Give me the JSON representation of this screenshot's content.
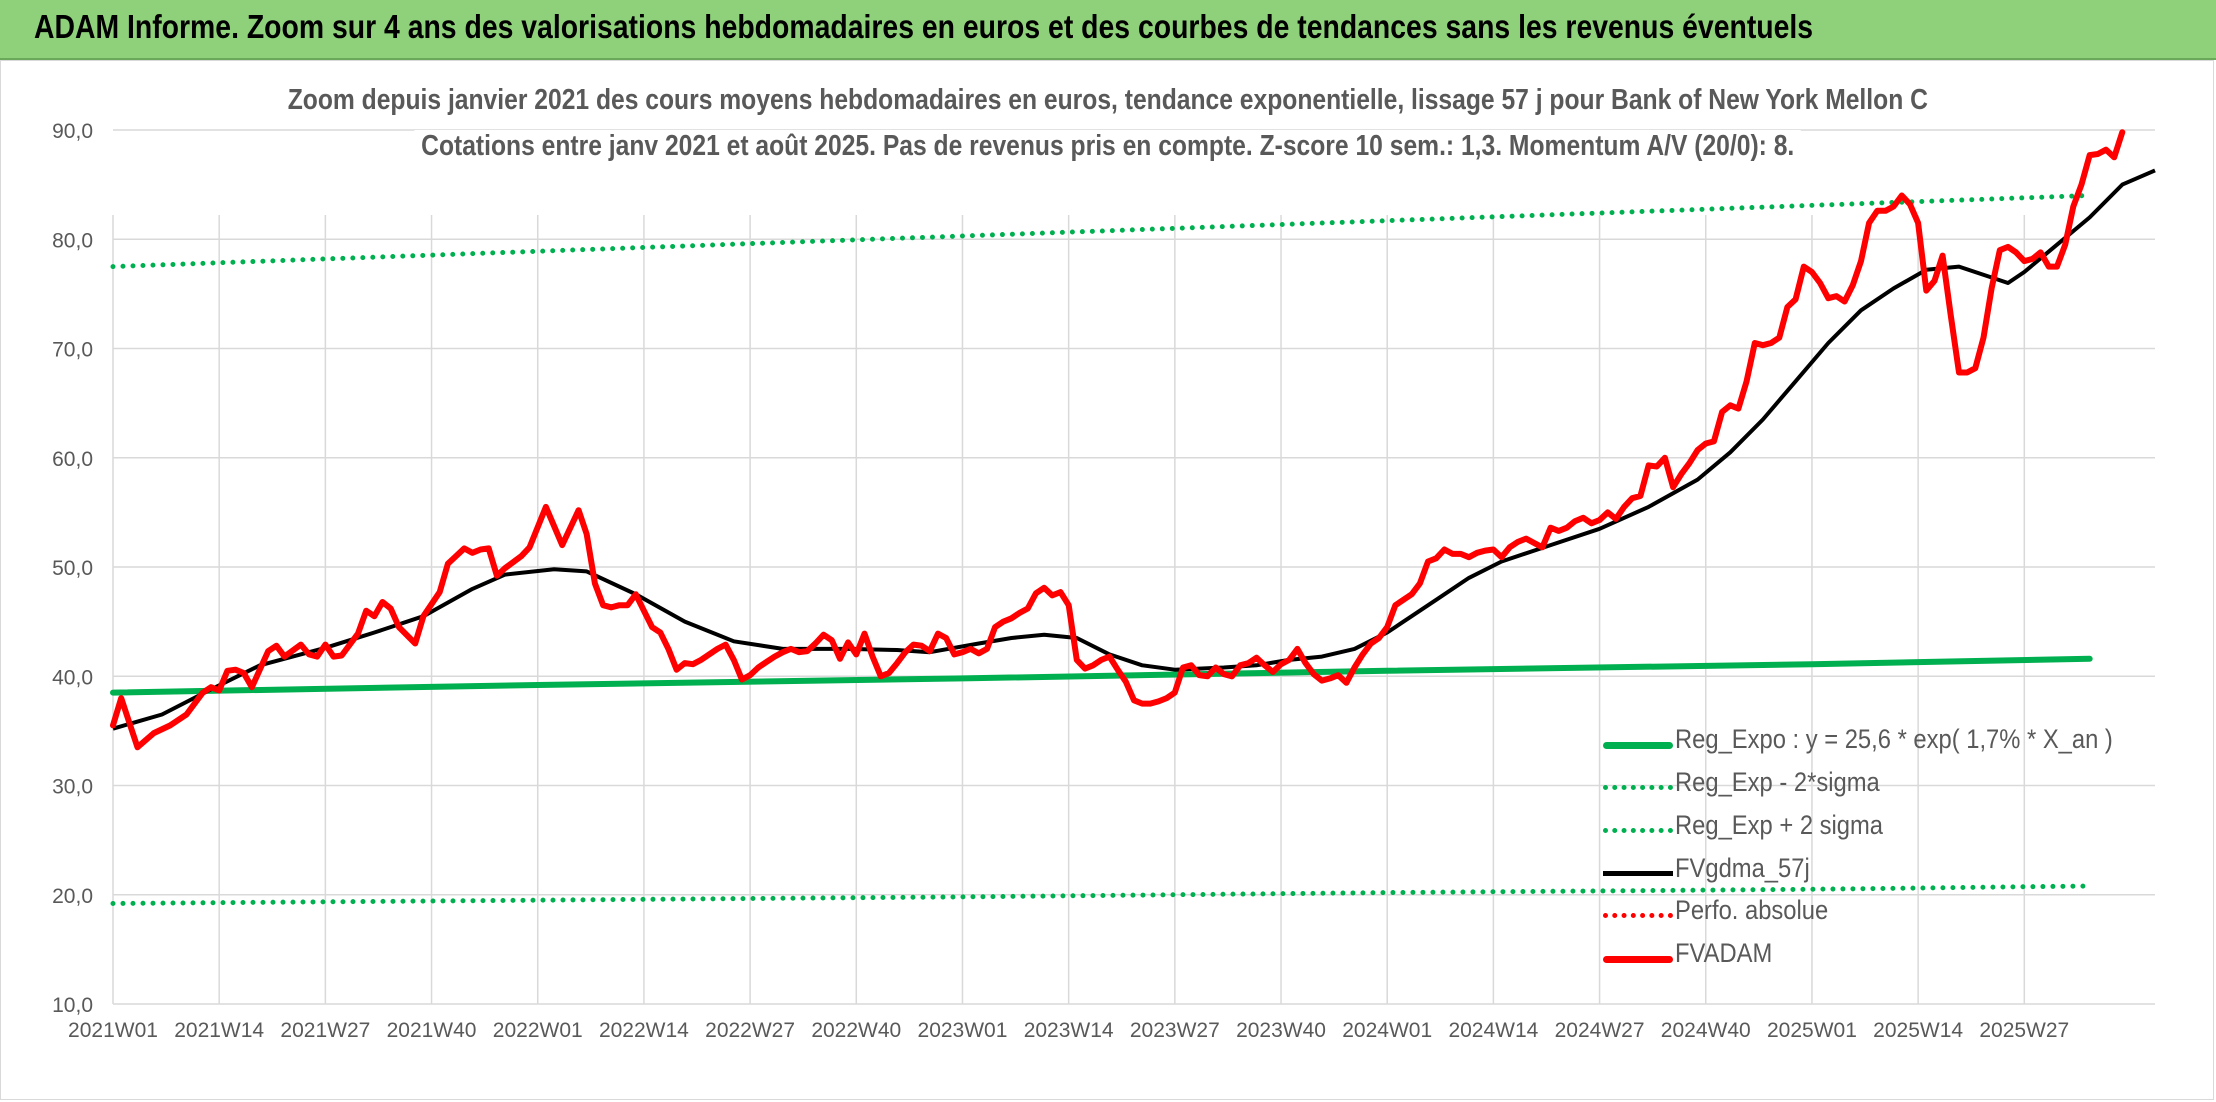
{
  "header": {
    "title": "ADAM Informe. Zoom sur 4 ans des valorisations hebdomadaires en euros et des courbes de tendances sans les revenus éventuels"
  },
  "chart_data": {
    "type": "line",
    "title": "Zoom depuis janvier 2021 des cours moyens hebdomadaires en euros, tendance exponentielle, lissage 57 j pour Bank of New York Mellon C",
    "subtitle": "Cotations entre janv 2021 et août 2025. Pas de revenus pris en compte. Z-score 10 sem.: 1,3. Momentum A/V (20/0): 8.",
    "xlabel": "",
    "ylabel": "",
    "ylim": [
      10,
      90
    ],
    "yticks": [
      "10,0",
      "20,0",
      "30,0",
      "40,0",
      "50,0",
      "60,0",
      "70,0",
      "80,0",
      "90,0"
    ],
    "xticks": [
      "2021W01",
      "2021W14",
      "2021W27",
      "2021W40",
      "2022W01",
      "2022W14",
      "2022W27",
      "2022W40",
      "2023W01",
      "2023W14",
      "2023W27",
      "2023W40",
      "2024W01",
      "2024W14",
      "2024W27",
      "2024W40",
      "2025W01",
      "2025W14",
      "2025W27"
    ],
    "grid": true,
    "legend_position": "bottom-right",
    "series": [
      {
        "name": "Reg_Expo : y = 25,6 * exp( 1,7% *  X_an )",
        "color": "#00b050",
        "style": "solid-thick",
        "points": [
          [
            0,
            38.5
          ],
          [
            52,
            39.2
          ],
          [
            104,
            39.8
          ],
          [
            156,
            40.5
          ],
          [
            208,
            41.1
          ],
          [
            242,
            41.6
          ]
        ]
      },
      {
        "name": "Reg_Exp - 2*sigma",
        "color": "#00b050",
        "style": "dotted",
        "points": [
          [
            0,
            19.2
          ],
          [
            52,
            19.5
          ],
          [
            104,
            19.8
          ],
          [
            156,
            20.2
          ],
          [
            208,
            20.5
          ],
          [
            242,
            20.8
          ]
        ]
      },
      {
        "name": "Reg_Exp + 2 sigma",
        "color": "#00b050",
        "style": "dotted",
        "points": [
          [
            0,
            77.5
          ],
          [
            52,
            78.9
          ],
          [
            104,
            80.3
          ],
          [
            156,
            81.7
          ],
          [
            208,
            83.1
          ],
          [
            242,
            84.0
          ]
        ]
      },
      {
        "name": "FVgdma_57j",
        "color": "#000000",
        "style": "solid",
        "points": [
          [
            0,
            35.2
          ],
          [
            6,
            36.5
          ],
          [
            12,
            38.8
          ],
          [
            18,
            41.0
          ],
          [
            26,
            42.6
          ],
          [
            32,
            44.0
          ],
          [
            38,
            45.5
          ],
          [
            44,
            48.0
          ],
          [
            48,
            49.3
          ],
          [
            54,
            49.8
          ],
          [
            58,
            49.6
          ],
          [
            64,
            47.5
          ],
          [
            70,
            45.0
          ],
          [
            76,
            43.2
          ],
          [
            82,
            42.5
          ],
          [
            90,
            42.5
          ],
          [
            96,
            42.4
          ],
          [
            100,
            42.2
          ],
          [
            106,
            43.0
          ],
          [
            110,
            43.5
          ],
          [
            114,
            43.8
          ],
          [
            118,
            43.5
          ],
          [
            122,
            42.0
          ],
          [
            126,
            41.0
          ],
          [
            130,
            40.6
          ],
          [
            136,
            40.8
          ],
          [
            140,
            41.0
          ],
          [
            144,
            41.5
          ],
          [
            148,
            41.8
          ],
          [
            152,
            42.5
          ],
          [
            156,
            44.0
          ],
          [
            162,
            47.0
          ],
          [
            166,
            49.0
          ],
          [
            170,
            50.5
          ],
          [
            176,
            52.0
          ],
          [
            182,
            53.5
          ],
          [
            188,
            55.5
          ],
          [
            194,
            58.0
          ],
          [
            198,
            60.5
          ],
          [
            202,
            63.5
          ],
          [
            206,
            67.0
          ],
          [
            210,
            70.5
          ],
          [
            214,
            73.5
          ],
          [
            218,
            75.5
          ],
          [
            222,
            77.2
          ],
          [
            226,
            77.5
          ],
          [
            230,
            76.5
          ],
          [
            232,
            76.0
          ],
          [
            234,
            77.0
          ],
          [
            238,
            79.5
          ],
          [
            242,
            82.0
          ],
          [
            246,
            85.0
          ],
          [
            250,
            86.3
          ]
        ]
      },
      {
        "name": "Perfo. absolue",
        "color": "#ff0000",
        "style": "dotted",
        "points": []
      },
      {
        "name": "FVADAM",
        "color": "#ff0000",
        "style": "solid-thick",
        "points": [
          [
            0,
            35.5
          ],
          [
            1,
            38.0
          ],
          [
            3,
            33.5
          ],
          [
            5,
            34.8
          ],
          [
            7,
            35.5
          ],
          [
            9,
            36.5
          ],
          [
            11,
            38.5
          ],
          [
            12,
            39.0
          ],
          [
            13,
            38.7
          ],
          [
            14,
            40.5
          ],
          [
            15,
            40.6
          ],
          [
            16,
            40.3
          ],
          [
            17,
            39.0
          ],
          [
            19,
            42.3
          ],
          [
            20,
            42.8
          ],
          [
            21,
            41.8
          ],
          [
            23,
            42.9
          ],
          [
            24,
            42.0
          ],
          [
            25,
            41.8
          ],
          [
            26,
            42.9
          ],
          [
            27,
            41.8
          ],
          [
            28,
            41.9
          ],
          [
            30,
            43.9
          ],
          [
            31,
            46.0
          ],
          [
            32,
            45.5
          ],
          [
            33,
            46.8
          ],
          [
            34,
            46.2
          ],
          [
            35,
            44.5
          ],
          [
            37,
            43.0
          ],
          [
            38,
            45.5
          ],
          [
            40,
            47.7
          ],
          [
            41,
            50.3
          ],
          [
            42,
            51.0
          ],
          [
            43,
            51.7
          ],
          [
            44,
            51.3
          ],
          [
            45,
            51.6
          ],
          [
            46,
            51.7
          ],
          [
            47,
            49.2
          ],
          [
            48,
            49.9
          ],
          [
            50,
            51.0
          ],
          [
            51,
            51.8
          ],
          [
            53,
            55.5
          ],
          [
            55,
            52.0
          ],
          [
            57,
            55.2
          ],
          [
            58,
            53.0
          ],
          [
            59,
            48.5
          ],
          [
            60,
            46.5
          ],
          [
            61,
            46.3
          ],
          [
            62,
            46.5
          ],
          [
            63,
            46.5
          ],
          [
            64,
            47.5
          ],
          [
            65,
            46.0
          ],
          [
            66,
            44.5
          ],
          [
            67,
            44.0
          ],
          [
            68,
            42.5
          ],
          [
            69,
            40.6
          ],
          [
            70,
            41.2
          ],
          [
            71,
            41.1
          ],
          [
            72,
            41.5
          ],
          [
            74,
            42.5
          ],
          [
            75,
            42.9
          ],
          [
            76,
            41.5
          ],
          [
            77,
            39.7
          ],
          [
            78,
            40.1
          ],
          [
            79,
            40.8
          ],
          [
            80,
            41.3
          ],
          [
            81,
            41.8
          ],
          [
            82,
            42.2
          ],
          [
            83,
            42.5
          ],
          [
            84,
            42.2
          ],
          [
            85,
            42.3
          ],
          [
            86,
            43.0
          ],
          [
            87,
            43.8
          ],
          [
            88,
            43.3
          ],
          [
            89,
            41.6
          ],
          [
            90,
            43.1
          ],
          [
            91,
            42.0
          ],
          [
            92,
            43.9
          ],
          [
            93,
            41.8
          ],
          [
            94,
            40.0
          ],
          [
            95,
            40.3
          ],
          [
            96,
            41.2
          ],
          [
            97,
            42.2
          ],
          [
            98,
            42.9
          ],
          [
            99,
            42.8
          ],
          [
            100,
            42.3
          ],
          [
            101,
            43.9
          ],
          [
            102,
            43.5
          ],
          [
            103,
            42.0
          ],
          [
            104,
            42.2
          ],
          [
            105,
            42.5
          ],
          [
            106,
            42.1
          ],
          [
            107,
            42.5
          ],
          [
            108,
            44.5
          ],
          [
            109,
            45.0
          ],
          [
            110,
            45.3
          ],
          [
            111,
            45.8
          ],
          [
            112,
            46.2
          ],
          [
            113,
            47.6
          ],
          [
            114,
            48.1
          ],
          [
            115,
            47.4
          ],
          [
            116,
            47.7
          ],
          [
            117,
            46.5
          ],
          [
            118,
            41.5
          ],
          [
            119,
            40.7
          ],
          [
            120,
            41.0
          ],
          [
            121,
            41.5
          ],
          [
            122,
            41.8
          ],
          [
            123,
            40.6
          ],
          [
            124,
            39.5
          ],
          [
            125,
            37.8
          ],
          [
            126,
            37.5
          ],
          [
            127,
            37.5
          ],
          [
            128,
            37.7
          ],
          [
            129,
            38.0
          ],
          [
            130,
            38.5
          ],
          [
            131,
            40.8
          ],
          [
            132,
            41.0
          ],
          [
            133,
            40.1
          ],
          [
            134,
            40.0
          ],
          [
            135,
            40.8
          ],
          [
            136,
            40.2
          ],
          [
            137,
            40.0
          ],
          [
            138,
            41.0
          ],
          [
            139,
            41.2
          ],
          [
            140,
            41.7
          ],
          [
            141,
            41.0
          ],
          [
            142,
            40.4
          ],
          [
            143,
            41.1
          ],
          [
            144,
            41.5
          ],
          [
            145,
            42.5
          ],
          [
            146,
            41.2
          ],
          [
            147,
            40.2
          ],
          [
            148,
            39.6
          ],
          [
            149,
            39.8
          ],
          [
            150,
            40.1
          ],
          [
            151,
            39.4
          ],
          [
            152,
            40.8
          ],
          [
            153,
            42.0
          ],
          [
            154,
            43.0
          ],
          [
            155,
            43.5
          ],
          [
            156,
            44.5
          ],
          [
            157,
            46.5
          ],
          [
            158,
            47.0
          ],
          [
            159,
            47.5
          ],
          [
            160,
            48.5
          ],
          [
            161,
            50.5
          ],
          [
            162,
            50.8
          ],
          [
            163,
            51.6
          ],
          [
            164,
            51.2
          ],
          [
            165,
            51.2
          ],
          [
            166,
            50.9
          ],
          [
            167,
            51.3
          ],
          [
            168,
            51.5
          ],
          [
            169,
            51.6
          ],
          [
            170,
            50.9
          ],
          [
            171,
            51.8
          ],
          [
            172,
            52.3
          ],
          [
            173,
            52.6
          ],
          [
            174,
            52.2
          ],
          [
            175,
            51.8
          ],
          [
            176,
            53.6
          ],
          [
            177,
            53.3
          ],
          [
            178,
            53.6
          ],
          [
            179,
            54.2
          ],
          [
            180,
            54.5
          ],
          [
            181,
            54.0
          ],
          [
            182,
            54.3
          ],
          [
            183,
            55.0
          ],
          [
            184,
            54.4
          ],
          [
            185,
            55.5
          ],
          [
            186,
            56.3
          ],
          [
            187,
            56.5
          ],
          [
            188,
            59.3
          ],
          [
            189,
            59.2
          ],
          [
            190,
            60.0
          ],
          [
            191,
            57.3
          ],
          [
            192,
            58.5
          ],
          [
            193,
            59.5
          ],
          [
            194,
            60.7
          ],
          [
            195,
            61.3
          ],
          [
            196,
            61.5
          ],
          [
            197,
            64.2
          ],
          [
            198,
            64.8
          ],
          [
            199,
            64.5
          ],
          [
            200,
            67.0
          ],
          [
            201,
            70.5
          ],
          [
            202,
            70.3
          ],
          [
            203,
            70.5
          ],
          [
            204,
            71.0
          ],
          [
            205,
            73.8
          ],
          [
            206,
            74.5
          ],
          [
            207,
            77.5
          ],
          [
            208,
            77.0
          ],
          [
            209,
            76.0
          ],
          [
            210,
            74.6
          ],
          [
            211,
            74.8
          ],
          [
            212,
            74.3
          ],
          [
            213,
            75.8
          ],
          [
            214,
            78.0
          ],
          [
            215,
            81.5
          ],
          [
            216,
            82.6
          ],
          [
            217,
            82.6
          ],
          [
            218,
            83.0
          ],
          [
            219,
            84.0
          ],
          [
            220,
            83.2
          ],
          [
            221,
            81.5
          ],
          [
            222,
            75.3
          ],
          [
            223,
            76.2
          ],
          [
            224,
            78.5
          ],
          [
            225,
            73.0
          ],
          [
            226,
            67.8
          ],
          [
            227,
            67.8
          ],
          [
            228,
            68.2
          ],
          [
            229,
            71.0
          ],
          [
            230,
            75.5
          ],
          [
            231,
            79.0
          ],
          [
            232,
            79.3
          ],
          [
            233,
            78.8
          ],
          [
            234,
            78.0
          ],
          [
            235,
            78.2
          ],
          [
            236,
            78.8
          ],
          [
            237,
            77.5
          ],
          [
            238,
            77.5
          ],
          [
            239,
            79.5
          ],
          [
            240,
            83.0
          ],
          [
            241,
            85.0
          ],
          [
            242,
            87.7
          ],
          [
            243,
            87.8
          ],
          [
            244,
            88.2
          ],
          [
            245,
            87.5
          ],
          [
            246,
            89.8
          ]
        ]
      }
    ]
  }
}
